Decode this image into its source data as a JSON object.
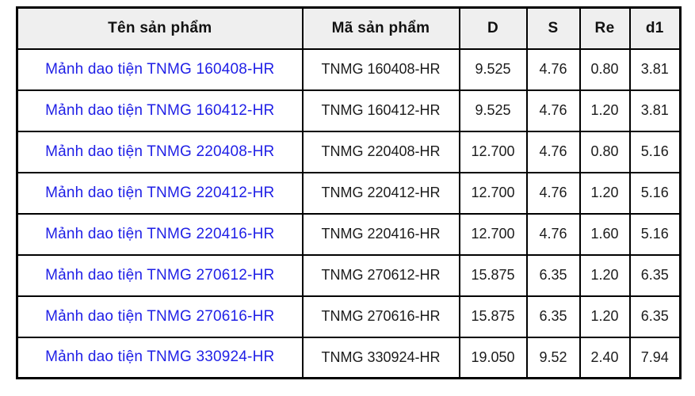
{
  "colors": {
    "link_blue": "#1f1fe6",
    "border": "#000000",
    "header_bg": "#efefef",
    "page_bg": "#ffffff",
    "header_text": "#111111",
    "cell_text": "#1c1c1c"
  },
  "table": {
    "columns": [
      {
        "key": "name",
        "label": "Tên sản phẩm"
      },
      {
        "key": "code",
        "label": "Mã sản phẩm"
      },
      {
        "key": "d",
        "label": "D"
      },
      {
        "key": "s",
        "label": "S"
      },
      {
        "key": "re",
        "label": "Re"
      },
      {
        "key": "d1",
        "label": "d1"
      }
    ],
    "rows": [
      {
        "name": "Mảnh dao tiện TNMG 160408-HR",
        "code": "TNMG 160408-HR",
        "d": "9.525",
        "s": "4.76",
        "re": "0.80",
        "d1": "3.81"
      },
      {
        "name": "Mảnh dao tiện TNMG 160412-HR",
        "code": "TNMG 160412-HR",
        "d": "9.525",
        "s": "4.76",
        "re": "1.20",
        "d1": "3.81"
      },
      {
        "name": "Mảnh dao tiện TNMG 220408-HR",
        "code": "TNMG 220408-HR",
        "d": "12.700",
        "s": "4.76",
        "re": "0.80",
        "d1": "5.16"
      },
      {
        "name": "Mảnh dao tiện TNMG 220412-HR",
        "code": "TNMG 220412-HR",
        "d": "12.700",
        "s": "4.76",
        "re": "1.20",
        "d1": "5.16"
      },
      {
        "name": "Mảnh dao tiện TNMG 220416-HR",
        "code": "TNMG 220416-HR",
        "d": "12.700",
        "s": "4.76",
        "re": "1.60",
        "d1": "5.16"
      },
      {
        "name": "Mảnh dao tiện TNMG 270612-HR",
        "code": "TNMG 270612-HR",
        "d": "15.875",
        "s": "6.35",
        "re": "1.20",
        "d1": "6.35"
      },
      {
        "name": "Mảnh dao tiện TNMG 270616-HR",
        "code": "TNMG 270616-HR",
        "d": "15.875",
        "s": "6.35",
        "re": "1.20",
        "d1": "6.35"
      },
      {
        "name": "Mảnh dao tiện TNMG 330924-HR",
        "code": "TNMG 330924-HR",
        "d": "19.050",
        "s": "9.52",
        "re": "2.40",
        "d1": "7.94"
      }
    ]
  },
  "chart_data": {
    "type": "table",
    "title": "",
    "columns": [
      "Tên sản phẩm",
      "Mã sản phẩm",
      "D",
      "S",
      "Re",
      "d1"
    ],
    "rows": [
      [
        "Mảnh dao tiện TNMG 160408-HR",
        "TNMG 160408-HR",
        9.525,
        4.76,
        0.8,
        3.81
      ],
      [
        "Mảnh dao tiện TNMG 160412-HR",
        "TNMG 160412-HR",
        9.525,
        4.76,
        1.2,
        3.81
      ],
      [
        "Mảnh dao tiện TNMG 220408-HR",
        "TNMG 220408-HR",
        12.7,
        4.76,
        0.8,
        5.16
      ],
      [
        "Mảnh dao tiện TNMG 220412-HR",
        "TNMG 220412-HR",
        12.7,
        4.76,
        1.2,
        5.16
      ],
      [
        "Mảnh dao tiện TNMG 220416-HR",
        "TNMG 220416-HR",
        12.7,
        4.76,
        1.6,
        5.16
      ],
      [
        "Mảnh dao tiện TNMG 270612-HR",
        "TNMG 270612-HR",
        15.875,
        6.35,
        1.2,
        6.35
      ],
      [
        "Mảnh dao tiện TNMG 270616-HR",
        "TNMG 270616-HR",
        15.875,
        6.35,
        1.2,
        6.35
      ],
      [
        "Mảnh dao tiện TNMG 330924-HR",
        "TNMG 330924-HR",
        19.05,
        9.52,
        2.4,
        7.94
      ]
    ],
    "layout_hints": {
      "header_background": "#efefef",
      "grid": true,
      "link_column": 0
    }
  }
}
